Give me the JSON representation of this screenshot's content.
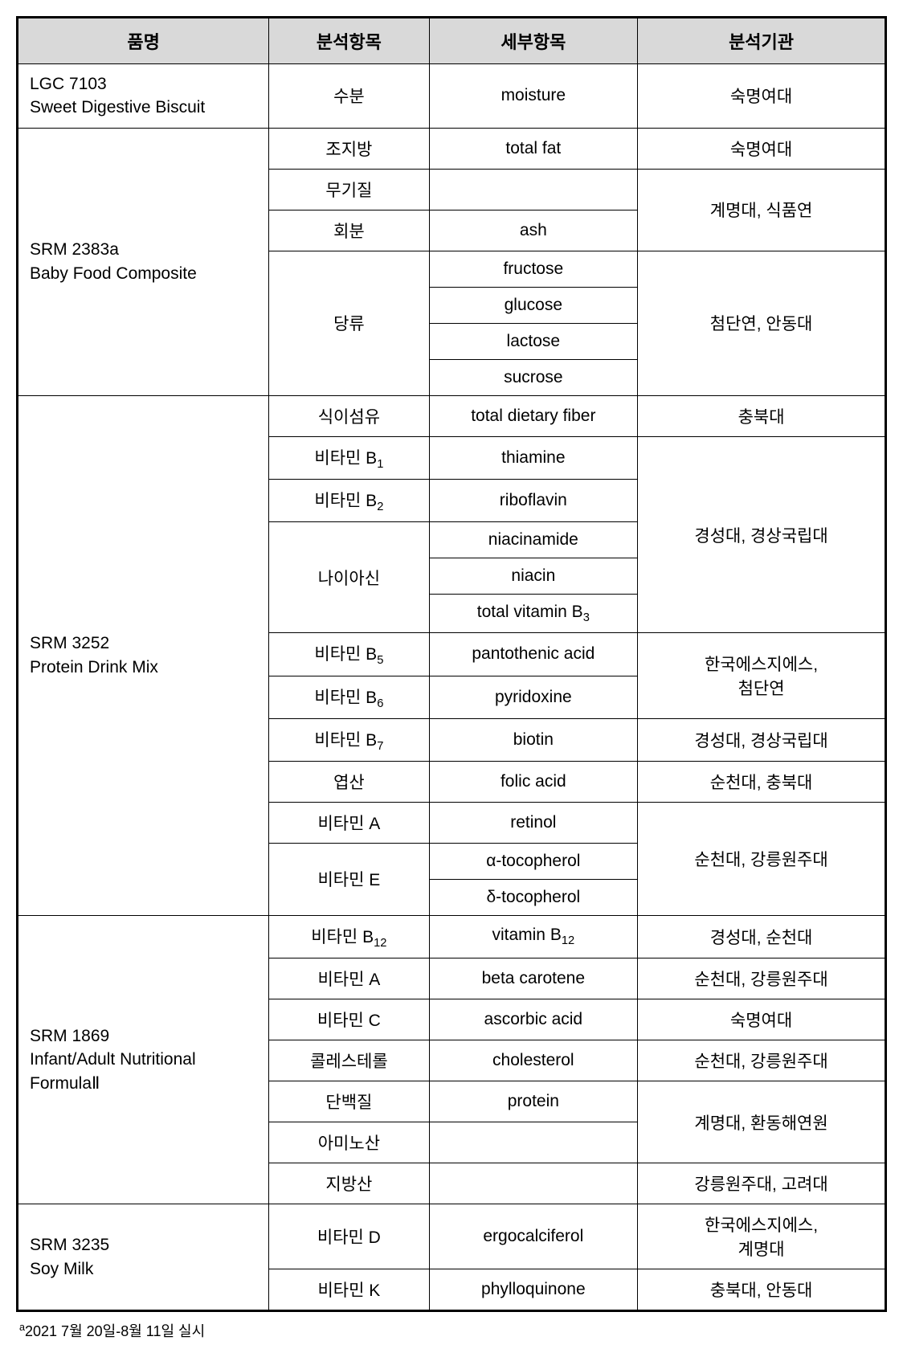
{
  "headers": {
    "col1": "품명",
    "col2": "분석항목",
    "col3": "세부항목",
    "col4": "분석기관"
  },
  "products": {
    "p1_line1": "LGC 7103",
    "p1_line2": "Sweet Digestive Biscuit",
    "p2_line1": "SRM 2383a",
    "p2_line2": "Baby Food Composite",
    "p3_line1": "SRM 3252",
    "p3_line2": "Protein Drink Mix",
    "p4_line1": "SRM 1869",
    "p4_line2": "Infant/Adult Nutritional",
    "p4_line3": "FormulaⅡ",
    "p5_line1": "SRM 3235",
    "p5_line2": "Soy Milk"
  },
  "analysis": {
    "moisture": "수분",
    "totalfat": "조지방",
    "mineral": "무기질",
    "ash": "회분",
    "sugars": "당류",
    "fiber": "식이섬유",
    "vitb1": "비타민 B",
    "vitb2": "비타민 B",
    "niacin_k": "나이아신",
    "vitb5": "비타민 B",
    "vitb6": "비타민 B",
    "vitb7": "비타민 B",
    "folic": "엽산",
    "vita": "비타민 A",
    "vite": "비타민 E",
    "vitb12": "비타민 B",
    "vita2": "비타민 A",
    "vitc": "비타민 C",
    "chol": "콜레스테롤",
    "protein": "단백질",
    "amino": "아미노산",
    "fatty": "지방산",
    "vitd": "비타민 D",
    "vitk": "비타민 K"
  },
  "detail": {
    "moisture": "moisture",
    "totalfat": "total fat",
    "ash": "ash",
    "fructose": "fructose",
    "glucose": "glucose",
    "lactose": "lactose",
    "sucrose": "sucrose",
    "fiber": "total dietary fiber",
    "thiamine": "thiamine",
    "riboflavin": "riboflavin",
    "niacinamide": "niacinamide",
    "niacin": "niacin",
    "totalb3": "total vitamin B",
    "pantothenic": "pantothenic acid",
    "pyridoxine": "pyridoxine",
    "biotin": "biotin",
    "folic": "folic acid",
    "retinol": "retinol",
    "atoco": "α-tocopherol",
    "dtoco": "δ-tocopherol",
    "vitb12": "vitamin B",
    "betacarotene": "beta carotene",
    "ascorbic": "ascorbic acid",
    "cholesterol": "cholesterol",
    "protein": "protein",
    "ergocalciferol": "ergocalciferol",
    "phylloquinone": "phylloquinone"
  },
  "org": {
    "sookmyung": "숙명여대",
    "keimyung_food": "계명대, 식품연",
    "chumdan_andong": "첨단연, 안동대",
    "chungbuk": "충북대",
    "kyungsung_gyeongsang": "경성대, 경상국립대",
    "sgs_chumdan_l1": "한국에스지에스,",
    "sgs_chumdan_l2": "첨단연",
    "suncheon_chungbuk": "순천대, 충북대",
    "suncheon_gangneung": "순천대, 강릉원주대",
    "kyungsung_suncheon": "경성대, 순천대",
    "keimyung_hwandonghae": "계명대, 환동해연원",
    "gangneung_korea": "강릉원주대, 고려대",
    "sgs_keimyung_l1": "한국에스지에스,",
    "sgs_keimyung_l2": "계명대",
    "chungbuk_andong": "충북대, 안동대"
  },
  "footnote_pre": "a",
  "footnote": "2021 7월 20일-8월 11일 실시"
}
